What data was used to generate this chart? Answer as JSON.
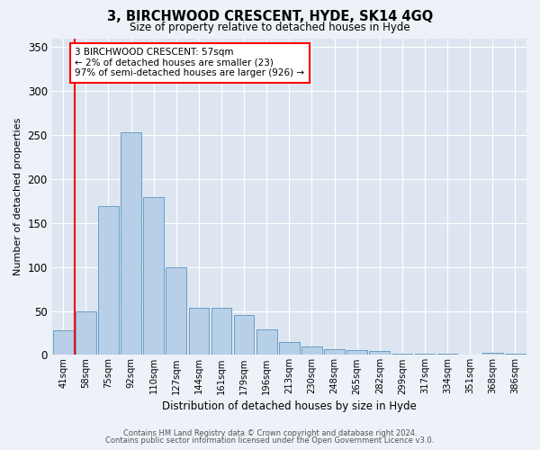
{
  "title": "3, BIRCHWOOD CRESCENT, HYDE, SK14 4GQ",
  "subtitle": "Size of property relative to detached houses in Hyde",
  "xlabel": "Distribution of detached houses by size in Hyde",
  "ylabel": "Number of detached properties",
  "categories": [
    "41sqm",
    "58sqm",
    "75sqm",
    "92sqm",
    "110sqm",
    "127sqm",
    "144sqm",
    "161sqm",
    "179sqm",
    "196sqm",
    "213sqm",
    "230sqm",
    "248sqm",
    "265sqm",
    "282sqm",
    "299sqm",
    "317sqm",
    "334sqm",
    "351sqm",
    "368sqm",
    "386sqm"
  ],
  "values": [
    28,
    50,
    169,
    253,
    179,
    100,
    54,
    54,
    45,
    29,
    15,
    10,
    7,
    6,
    5,
    1,
    1,
    1,
    0,
    2,
    1
  ],
  "bar_color": "#b8cfe8",
  "bar_edge_color": "#6a9ec5",
  "bg_color": "#dde6f0",
  "fig_bg_color": "#edf1f8",
  "grid_color": "#ffffff",
  "annotation_line1": "3 BIRCHWOOD CRESCENT: 57sqm",
  "annotation_line2": "← 2% of detached houses are smaller (23)",
  "annotation_line3": "97% of semi-detached houses are larger (926) →",
  "vline_x_index": 0.5,
  "ylim": [
    0,
    360
  ],
  "yticks": [
    0,
    50,
    100,
    150,
    200,
    250,
    300,
    350
  ],
  "footer1": "Contains HM Land Registry data © Crown copyright and database right 2024.",
  "footer2": "Contains public sector information licensed under the Open Government Licence v3.0."
}
